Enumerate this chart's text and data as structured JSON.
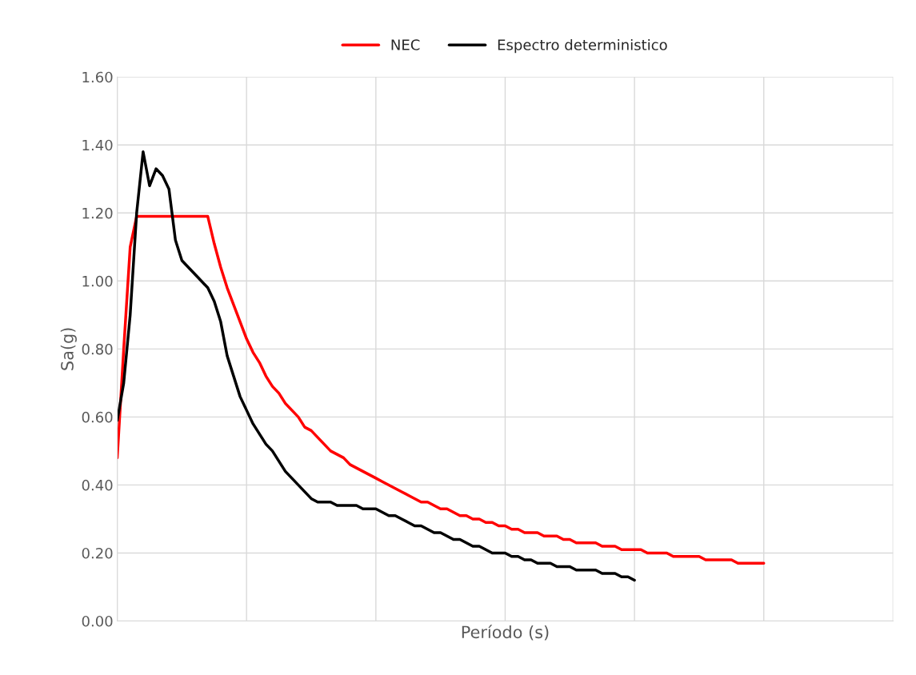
{
  "chart_data": {
    "type": "line",
    "xlabel": "Período (s)",
    "ylabel": "Sa(g)",
    "categories": [
      null,
      null,
      null,
      null,
      null,
      null,
      null,
      null,
      null,
      null,
      null,
      null,
      null,
      null,
      null,
      null,
      null,
      null,
      null,
      null,
      null,
      null,
      null,
      null,
      null,
      null,
      null,
      null,
      null,
      null,
      null,
      null,
      null,
      null,
      null,
      null,
      null,
      null,
      null,
      null,
      null,
      null,
      null,
      null,
      null,
      null,
      null,
      null,
      null,
      null,
      null,
      null,
      null,
      null,
      null,
      null,
      null,
      null,
      null,
      null,
      null,
      null,
      null,
      null,
      null,
      null,
      null,
      null,
      null,
      null,
      null,
      null,
      null,
      null,
      null,
      null,
      null,
      null,
      null,
      null,
      null,
      null,
      null,
      null,
      null,
      null,
      null,
      null,
      null,
      null,
      null,
      null,
      null,
      null,
      null,
      null,
      null,
      null,
      null,
      null,
      null,
      null,
      null,
      null,
      null,
      null,
      null,
      null,
      null,
      null,
      null,
      null,
      null,
      null,
      null,
      null,
      null,
      null,
      null,
      null,
      null
    ],
    "series": [
      {
        "name": "NEC",
        "color": "#ff0000",
        "values": [
          0.48,
          0.8,
          1.1,
          1.19,
          1.19,
          1.19,
          1.19,
          1.19,
          1.19,
          1.19,
          1.19,
          1.19,
          1.19,
          1.19,
          1.19,
          1.11,
          1.04,
          0.98,
          0.93,
          0.88,
          0.83,
          0.79,
          0.76,
          0.72,
          0.69,
          0.67,
          0.64,
          0.62,
          0.6,
          0.57,
          0.56,
          0.54,
          0.52,
          0.5,
          0.49,
          0.48,
          0.46,
          0.45,
          0.44,
          0.43,
          0.42,
          0.41,
          0.4,
          0.39,
          0.38,
          0.37,
          0.36,
          0.35,
          0.35,
          0.34,
          0.33,
          0.33,
          0.32,
          0.31,
          0.31,
          0.3,
          0.3,
          0.29,
          0.29,
          0.28,
          0.28,
          0.27,
          0.27,
          0.26,
          0.26,
          0.26,
          0.25,
          0.25,
          0.25,
          0.24,
          0.24,
          0.23,
          0.23,
          0.23,
          0.23,
          0.22,
          0.22,
          0.22,
          0.21,
          0.21,
          0.21,
          0.21,
          0.2,
          0.2,
          0.2,
          0.2,
          0.19,
          0.19,
          0.19,
          0.19,
          0.19,
          0.18,
          0.18,
          0.18,
          0.18,
          0.18,
          0.17,
          0.17,
          0.17,
          0.17,
          0.17,
          null,
          null,
          null,
          null,
          null,
          null,
          null,
          null,
          null,
          null,
          null,
          null,
          null,
          null,
          null,
          null,
          null,
          null,
          null,
          null
        ]
      },
      {
        "name": "Espectro deterministico",
        "color": "#000000",
        "values": [
          0.59,
          0.7,
          0.9,
          1.2,
          1.38,
          1.28,
          1.33,
          1.31,
          1.27,
          1.12,
          1.06,
          1.04,
          1.02,
          1.0,
          0.98,
          0.94,
          0.88,
          0.78,
          0.72,
          0.66,
          0.62,
          0.58,
          0.55,
          0.52,
          0.5,
          0.47,
          0.44,
          0.42,
          0.4,
          0.38,
          0.36,
          0.35,
          0.35,
          0.35,
          0.34,
          0.34,
          0.34,
          0.34,
          0.33,
          0.33,
          0.33,
          0.32,
          0.31,
          0.31,
          0.3,
          0.29,
          0.28,
          0.28,
          0.27,
          0.26,
          0.26,
          0.25,
          0.24,
          0.24,
          0.23,
          0.22,
          0.22,
          0.21,
          0.2,
          0.2,
          0.2,
          0.19,
          0.19,
          0.18,
          0.18,
          0.17,
          0.17,
          0.17,
          0.16,
          0.16,
          0.16,
          0.15,
          0.15,
          0.15,
          0.15,
          0.14,
          0.14,
          0.14,
          0.13,
          0.13,
          0.12,
          null,
          null,
          null,
          null,
          null,
          null,
          null,
          null,
          null,
          null,
          null,
          null,
          null,
          null,
          null,
          null,
          null,
          null,
          null,
          null,
          null,
          null,
          null,
          null,
          null,
          null,
          null,
          null,
          null,
          null,
          null,
          null,
          null,
          null,
          null,
          null,
          null,
          null,
          null,
          null
        ]
      }
    ],
    "ylim": [
      0,
      1.6
    ],
    "yticks": [
      {
        "value": 0,
        "label": "0.00"
      },
      {
        "value": 0.2,
        "label": "0.20"
      },
      {
        "value": 0.4,
        "label": "0.40"
      },
      {
        "value": 0.6,
        "label": "0.60"
      },
      {
        "value": 0.8,
        "label": "0.80"
      },
      {
        "value": 1.0,
        "label": "1.00"
      },
      {
        "value": 1.2,
        "label": "1.20"
      },
      {
        "value": 1.4,
        "label": "1.40"
      },
      {
        "value": 1.6,
        "label": "1.60"
      }
    ],
    "grid": true,
    "legend": "top",
    "tick_labels": "y",
    "marker": "none",
    "line_style": "solid"
  }
}
